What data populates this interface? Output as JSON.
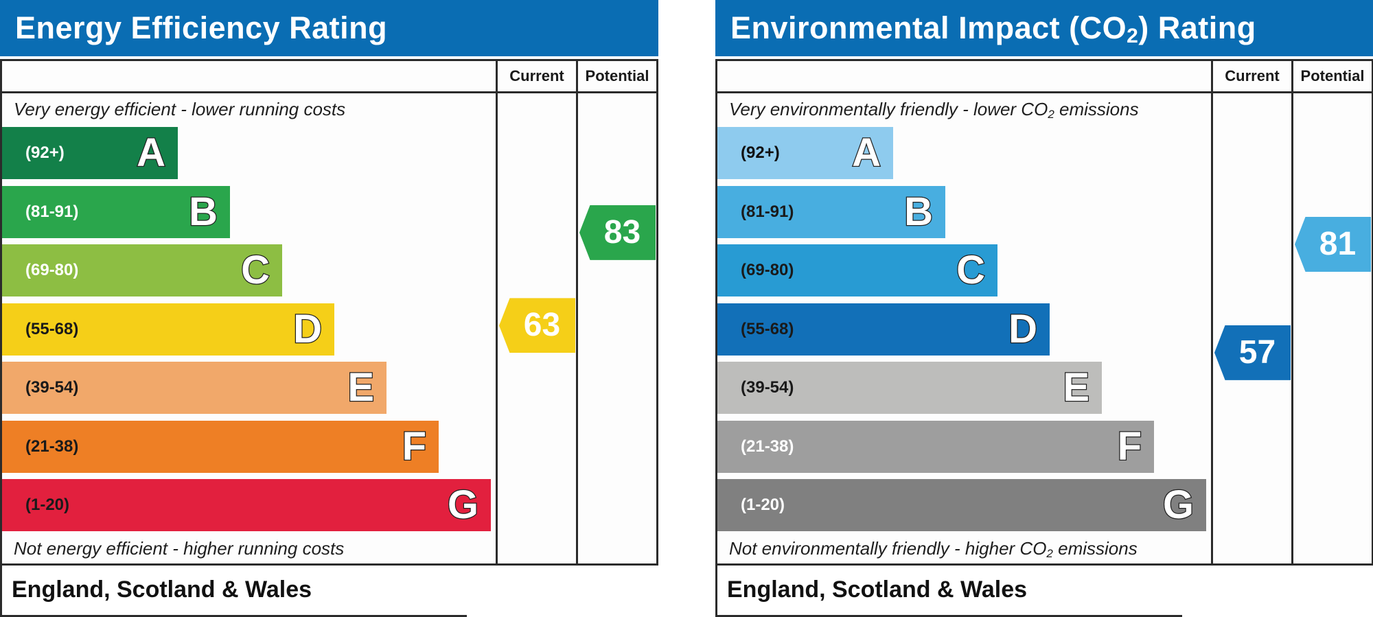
{
  "chart_data": [
    {
      "type": "bar",
      "title": "Energy Efficiency Rating",
      "columns": [
        "Current",
        "Potential"
      ],
      "top_note": "Very energy efficient - lower running costs",
      "bottom_note": "Not energy efficient - higher running costs",
      "region": "England, Scotland & Wales",
      "bands": [
        {
          "letter": "A",
          "range": "(92+)",
          "min": 92,
          "max": 100,
          "color": "#138049",
          "text_color": "#ffffff"
        },
        {
          "letter": "B",
          "range": "(81-91)",
          "min": 81,
          "max": 91,
          "color": "#2aa64c",
          "text_color": "#ffffff"
        },
        {
          "letter": "C",
          "range": "(69-80)",
          "min": 69,
          "max": 80,
          "color": "#8dbe43",
          "text_color": "#ffffff"
        },
        {
          "letter": "D",
          "range": "(55-68)",
          "min": 55,
          "max": 68,
          "color": "#f5cf18",
          "text_color": "#1a1a1a"
        },
        {
          "letter": "E",
          "range": "(39-54)",
          "min": 39,
          "max": 54,
          "color": "#f1a86a",
          "text_color": "#1a1a1a"
        },
        {
          "letter": "F",
          "range": "(21-38)",
          "min": 21,
          "max": 38,
          "color": "#ee7f25",
          "text_color": "#1a1a1a"
        },
        {
          "letter": "G",
          "range": "(1-20)",
          "min": 1,
          "max": 20,
          "color": "#e2203e",
          "text_color": "#1a1a1a"
        }
      ],
      "current": {
        "value": 63,
        "label": "63",
        "band": "D",
        "color": "#f5cf18"
      },
      "potential": {
        "value": 83,
        "label": "83",
        "band": "B",
        "color": "#2aa64c"
      }
    },
    {
      "type": "bar",
      "title_main": "Environmental Impact (CO",
      "title_sub": "2",
      "title_end": ") Rating",
      "columns": [
        "Current",
        "Potential"
      ],
      "top_note_main": "Very environmentally friendly - lower CO",
      "top_note_sub": "2",
      "top_note_end": " emissions",
      "bottom_note_main": "Not environmentally friendly - higher CO",
      "bottom_note_sub": "2",
      "bottom_note_end": " emissions",
      "region": "England, Scotland & Wales",
      "bands": [
        {
          "letter": "A",
          "range": "(92+)",
          "min": 92,
          "max": 100,
          "color": "#8ecbee",
          "text_color": "#111111"
        },
        {
          "letter": "B",
          "range": "(81-91)",
          "min": 81,
          "max": 91,
          "color": "#48aee0",
          "text_color": "#1a1a1a"
        },
        {
          "letter": "C",
          "range": "(69-80)",
          "min": 69,
          "max": 80,
          "color": "#289bd3",
          "text_color": "#1a1a1a"
        },
        {
          "letter": "D",
          "range": "(55-68)",
          "min": 55,
          "max": 68,
          "color": "#1270b8",
          "text_color": "#1a1a1a"
        },
        {
          "letter": "E",
          "range": "(39-54)",
          "min": 39,
          "max": 54,
          "color": "#bdbdbb",
          "text_color": "#1a1a1a"
        },
        {
          "letter": "F",
          "range": "(21-38)",
          "min": 21,
          "max": 38,
          "color": "#9e9e9e",
          "text_color": "#ffffff"
        },
        {
          "letter": "G",
          "range": "(1-20)",
          "min": 1,
          "max": 20,
          "color": "#808080",
          "text_color": "#ffffff"
        }
      ],
      "current": {
        "value": 57,
        "label": "57",
        "band": "D",
        "color": "#1270b8"
      },
      "potential": {
        "value": 81,
        "label": "81",
        "band": "B",
        "color": "#48aee0"
      }
    }
  ]
}
